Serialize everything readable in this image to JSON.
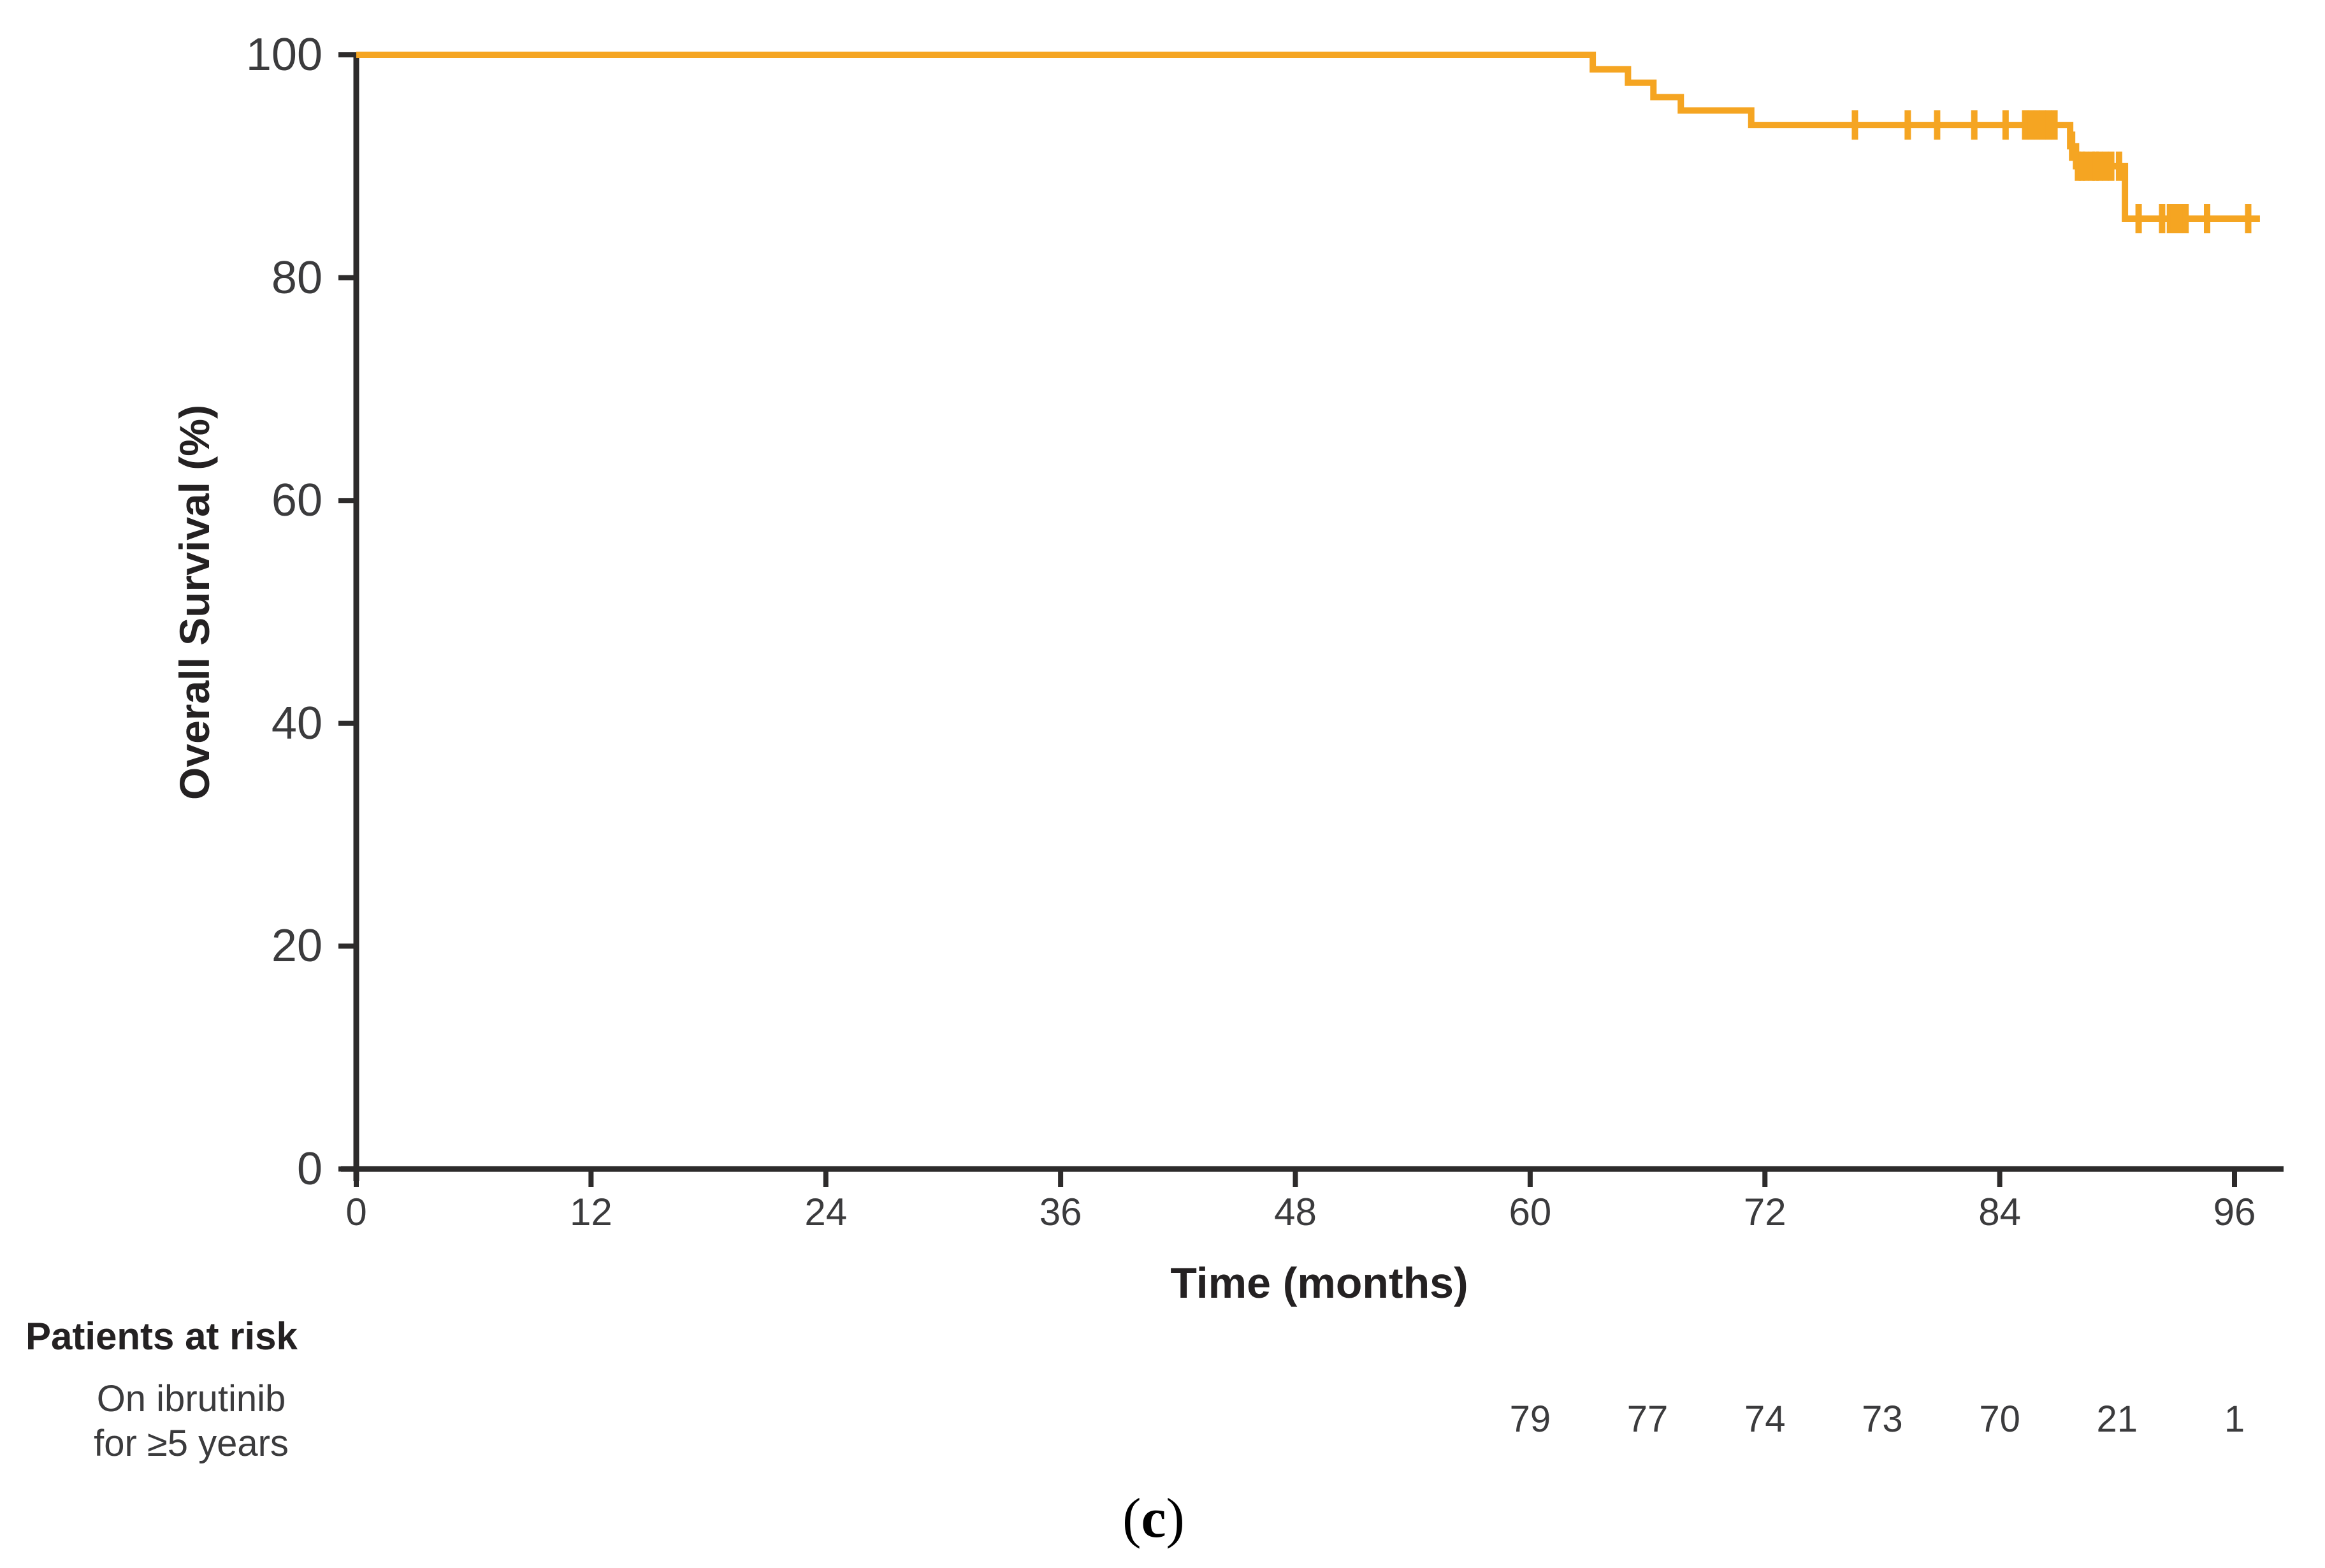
{
  "figure": {
    "caption": {
      "open": "(",
      "letter": "c",
      "close": ")"
    }
  },
  "chart_data": {
    "type": "line",
    "subtype": "kaplan-meier-step",
    "title": "",
    "xlabel": "Time (months)",
    "ylabel": "Overall Survival (%)",
    "xlim": [
      0,
      96
    ],
    "ylim": [
      0,
      100
    ],
    "x_ticks": [
      0,
      12,
      24,
      36,
      48,
      60,
      72,
      84,
      96
    ],
    "y_ticks": [
      0,
      20,
      40,
      60,
      80,
      100
    ],
    "grid": false,
    "legend": "none",
    "series": [
      {
        "name": "On ibrutinib for ≥5 years",
        "color": "#F5A522",
        "start": [
          0,
          100
        ],
        "events": [
          {
            "t": 63.2,
            "s": 98.7
          },
          {
            "t": 65.0,
            "s": 97.5
          },
          {
            "t": 66.3,
            "s": 96.2
          },
          {
            "t": 67.7,
            "s": 95.0
          },
          {
            "t": 71.3,
            "s": 93.7
          },
          {
            "t": 87.6,
            "s": 91.8
          },
          {
            "t": 87.9,
            "s": 90.0
          },
          {
            "t": 90.4,
            "s": 85.3
          }
        ],
        "end_t": 97.3,
        "censors": [
          [
            76.6,
            93.7
          ],
          [
            79.3,
            93.7
          ],
          [
            80.8,
            93.7
          ],
          [
            82.7,
            93.7
          ],
          [
            84.3,
            93.7
          ],
          [
            85.3,
            93.7
          ],
          [
            85.6,
            93.7
          ],
          [
            85.9,
            93.7
          ],
          [
            86.2,
            93.7
          ],
          [
            86.5,
            93.7
          ],
          [
            86.8,
            93.7
          ],
          [
            87.7,
            91.8
          ],
          [
            88.0,
            90.0
          ],
          [
            88.2,
            90.0
          ],
          [
            88.4,
            90.0
          ],
          [
            88.7,
            90.0
          ],
          [
            88.9,
            90.0
          ],
          [
            89.1,
            90.0
          ],
          [
            89.4,
            90.0
          ],
          [
            89.7,
            90.0
          ],
          [
            90.1,
            90.0
          ],
          [
            91.1,
            85.3
          ],
          [
            92.3,
            85.3
          ],
          [
            92.7,
            85.3
          ],
          [
            92.9,
            85.3
          ],
          [
            93.2,
            85.3
          ],
          [
            93.5,
            85.3
          ],
          [
            94.6,
            85.3
          ],
          [
            96.7,
            85.3
          ]
        ]
      }
    ]
  },
  "at_risk": {
    "header": "Patients at risk",
    "row_label_lines": [
      "On ibrutinib",
      "for ≥5 years"
    ],
    "times": [
      60,
      66,
      72,
      78,
      84,
      90,
      96
    ],
    "counts": [
      79,
      77,
      74,
      73,
      70,
      21,
      1
    ]
  },
  "colors": {
    "curve": "#F5A522",
    "axis": "#2D2B2B",
    "tick_text": "#3B3B3D",
    "label_text": "#242122"
  }
}
